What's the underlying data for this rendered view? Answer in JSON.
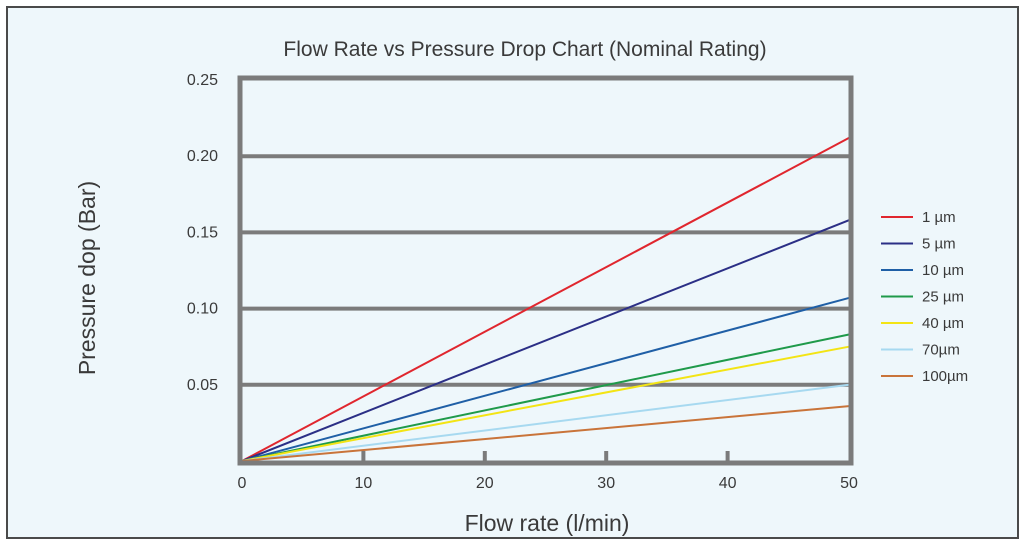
{
  "chart_data": {
    "type": "line",
    "title": "Flow Rate vs Pressure Drop Chart (Nominal Rating)",
    "xlabel": "Flow rate (l/min)",
    "ylabel": "Pressure dop (Bar)",
    "xlim": [
      0,
      50
    ],
    "ylim": [
      0,
      0.25
    ],
    "xticks": [
      0,
      10,
      20,
      30,
      40,
      50
    ],
    "xtick_labels": [
      "0",
      "10",
      "20",
      "30",
      "40",
      "50"
    ],
    "yticks": [
      0.05,
      0.1,
      0.15,
      0.2,
      0.25
    ],
    "ytick_labels": [
      "0.05",
      "0.10",
      "0.15",
      "0.20",
      "0.25"
    ],
    "grid": true,
    "legend_position": "right",
    "series": [
      {
        "name": "1 µm",
        "color": "#e0262e",
        "x": [
          0,
          50
        ],
        "y": [
          0,
          0.212
        ]
      },
      {
        "name": "5 µm",
        "color": "#2b2f86",
        "x": [
          0,
          50
        ],
        "y": [
          0,
          0.158
        ]
      },
      {
        "name": "10 µm",
        "color": "#1f5fa6",
        "x": [
          0,
          50
        ],
        "y": [
          0,
          0.107
        ]
      },
      {
        "name": "25 µm",
        "color": "#1f9a4a",
        "x": [
          0,
          50
        ],
        "y": [
          0,
          0.083
        ]
      },
      {
        "name": "40 µm",
        "color": "#f3e414",
        "x": [
          0,
          50
        ],
        "y": [
          0,
          0.075
        ]
      },
      {
        "name": "70µm",
        "color": "#a7d9f0",
        "x": [
          0,
          50
        ],
        "y": [
          0,
          0.05
        ]
      },
      {
        "name": "100µm",
        "color": "#c9743a",
        "x": [
          0,
          50
        ],
        "y": [
          0,
          0.036
        ]
      }
    ]
  }
}
